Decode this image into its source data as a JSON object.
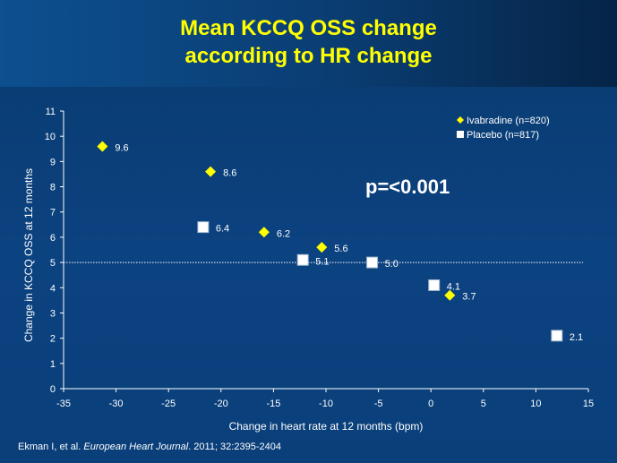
{
  "slide": {
    "title_line_1": "Mean KCCQ OSS change",
    "title_line_2": "according to HR change",
    "citation": {
      "authors": "Ekman I, et al.",
      "journal": "European Heart Journal",
      "details": ". 2011; 32:2395-2404"
    }
  },
  "colors": {
    "background": "#0b3f78",
    "title": "#ffff00",
    "ivabradine": "#ffff00",
    "placebo": "#ffffff",
    "text": "#ffffff"
  },
  "chart_data": {
    "type": "scatter",
    "xlabel": "Change in heart rate at 12 months (bpm)",
    "ylabel": "Change in KCCQ OSS at 12 months",
    "xlim": [
      -35,
      15
    ],
    "ylim": [
      0,
      11
    ],
    "x_ticks": [
      -35,
      -30,
      -25,
      -20,
      -15,
      -10,
      -5,
      0,
      5,
      10,
      15
    ],
    "y_ticks": [
      0,
      1,
      2,
      3,
      4,
      5,
      6,
      7,
      8,
      9,
      10,
      11
    ],
    "grid": false,
    "legend_position": "top-right",
    "reference_line_y": 5,
    "annotation": "p=<0.001",
    "series": [
      {
        "name": "Ivabradine (n=820)",
        "marker": "diamond",
        "color": "#ffff00",
        "points": [
          {
            "x": -31.3,
            "y": 9.6,
            "label": "9.6"
          },
          {
            "x": -21.0,
            "y": 8.6,
            "label": "8.6"
          },
          {
            "x": -15.9,
            "y": 6.2,
            "label": "6.2"
          },
          {
            "x": -10.4,
            "y": 5.6,
            "label": "5.6"
          },
          {
            "x": 1.8,
            "y": 3.7,
            "label": "3.7"
          }
        ]
      },
      {
        "name": "Placebo (n=817)",
        "marker": "square",
        "color": "#ffffff",
        "points": [
          {
            "x": -21.7,
            "y": 6.4,
            "label": "6.4"
          },
          {
            "x": -12.2,
            "y": 5.1,
            "label": "5.1"
          },
          {
            "x": -5.6,
            "y": 5.0,
            "label": "5.0"
          },
          {
            "x": 0.3,
            "y": 4.1,
            "label": "4.1"
          },
          {
            "x": 12.0,
            "y": 2.1,
            "label": "2.1"
          }
        ]
      }
    ]
  }
}
